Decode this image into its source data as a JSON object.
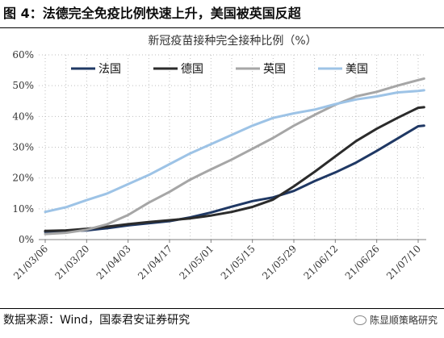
{
  "figure_title": "图 4：法德完全免疫比例快速上升，美国被英国反超",
  "source_text": "数据来源：Wind，国泰君安证券研究",
  "watermark": {
    "text": "陈显顺策略研究",
    "icon": "wechat-icon"
  },
  "chart_data": {
    "type": "line",
    "title": "新冠疫苗接种完全接种比例（%）",
    "xlabel": "",
    "ylabel": "",
    "ylim": [
      0,
      60
    ],
    "y_ticks": [
      "0%",
      "10%",
      "20%",
      "30%",
      "40%",
      "50%",
      "60%"
    ],
    "x_ticks": [
      "21/03/06",
      "21/03/20",
      "21/04/03",
      "21/04/17",
      "21/05/01",
      "21/05/15",
      "21/05/29",
      "21/06/12",
      "21/06/26",
      "21/07/10"
    ],
    "grid": "dotted",
    "legend_position": "top-left",
    "series": [
      {
        "name": "法国",
        "color": "#1f3864",
        "points": [
          [
            "21/03/06",
            2.5
          ],
          [
            "21/03/13",
            2.7
          ],
          [
            "21/03/20",
            3.0
          ],
          [
            "21/03/27",
            3.7
          ],
          [
            "21/04/03",
            4.6
          ],
          [
            "21/04/10",
            5.3
          ],
          [
            "21/04/17",
            6.0
          ],
          [
            "21/04/24",
            7.2
          ],
          [
            "21/05/01",
            8.8
          ],
          [
            "21/05/08",
            10.7
          ],
          [
            "21/05/15",
            12.5
          ],
          [
            "21/05/22",
            13.7
          ],
          [
            "21/05/29",
            15.8
          ],
          [
            "21/06/05",
            19.0
          ],
          [
            "21/06/12",
            21.8
          ],
          [
            "21/06/19",
            25.0
          ],
          [
            "21/06/26",
            28.8
          ],
          [
            "21/07/03",
            32.8
          ],
          [
            "21/07/10",
            36.8
          ],
          [
            "21/07/12",
            37.0
          ]
        ]
      },
      {
        "name": "德国",
        "color": "#2b2b2b",
        "points": [
          [
            "21/03/06",
            2.8
          ],
          [
            "21/03/13",
            3.0
          ],
          [
            "21/03/20",
            3.5
          ],
          [
            "21/03/27",
            4.2
          ],
          [
            "21/04/03",
            5.0
          ],
          [
            "21/04/10",
            5.7
          ],
          [
            "21/04/17",
            6.3
          ],
          [
            "21/04/24",
            6.9
          ],
          [
            "21/05/01",
            7.8
          ],
          [
            "21/05/08",
            9.0
          ],
          [
            "21/05/15",
            10.6
          ],
          [
            "21/05/22",
            13.0
          ],
          [
            "21/05/29",
            17.3
          ],
          [
            "21/06/05",
            22.0
          ],
          [
            "21/06/12",
            27.0
          ],
          [
            "21/06/19",
            32.0
          ],
          [
            "21/06/26",
            36.0
          ],
          [
            "21/07/03",
            39.5
          ],
          [
            "21/07/10",
            42.8
          ],
          [
            "21/07/12",
            43.0
          ]
        ]
      },
      {
        "name": "英国",
        "color": "#a6a6a6",
        "points": [
          [
            "21/03/06",
            1.8
          ],
          [
            "21/03/13",
            2.2
          ],
          [
            "21/03/20",
            3.2
          ],
          [
            "21/03/27",
            5.0
          ],
          [
            "21/04/03",
            8.0
          ],
          [
            "21/04/10",
            12.0
          ],
          [
            "21/04/17",
            15.5
          ],
          [
            "21/04/24",
            19.5
          ],
          [
            "21/05/01",
            22.8
          ],
          [
            "21/05/08",
            26.0
          ],
          [
            "21/05/15",
            29.5
          ],
          [
            "21/05/22",
            33.0
          ],
          [
            "21/05/29",
            37.0
          ],
          [
            "21/06/05",
            40.5
          ],
          [
            "21/06/12",
            43.8
          ],
          [
            "21/06/19",
            46.5
          ],
          [
            "21/06/26",
            48.0
          ],
          [
            "21/07/03",
            50.0
          ],
          [
            "21/07/10",
            51.8
          ],
          [
            "21/07/12",
            52.3
          ]
        ]
      },
      {
        "name": "美国",
        "color": "#9dc3e6",
        "points": [
          [
            "21/03/06",
            9.0
          ],
          [
            "21/03/13",
            10.5
          ],
          [
            "21/03/20",
            12.8
          ],
          [
            "21/03/27",
            15.0
          ],
          [
            "21/04/03",
            18.0
          ],
          [
            "21/04/10",
            21.0
          ],
          [
            "21/04/17",
            24.5
          ],
          [
            "21/04/24",
            28.0
          ],
          [
            "21/05/01",
            31.0
          ],
          [
            "21/05/08",
            34.0
          ],
          [
            "21/05/15",
            37.0
          ],
          [
            "21/05/22",
            39.5
          ],
          [
            "21/05/29",
            41.0
          ],
          [
            "21/06/05",
            42.2
          ],
          [
            "21/06/12",
            44.0
          ],
          [
            "21/06/19",
            45.5
          ],
          [
            "21/06/26",
            46.5
          ],
          [
            "21/07/03",
            47.8
          ],
          [
            "21/07/10",
            48.3
          ],
          [
            "21/07/12",
            48.5
          ]
        ]
      }
    ]
  }
}
